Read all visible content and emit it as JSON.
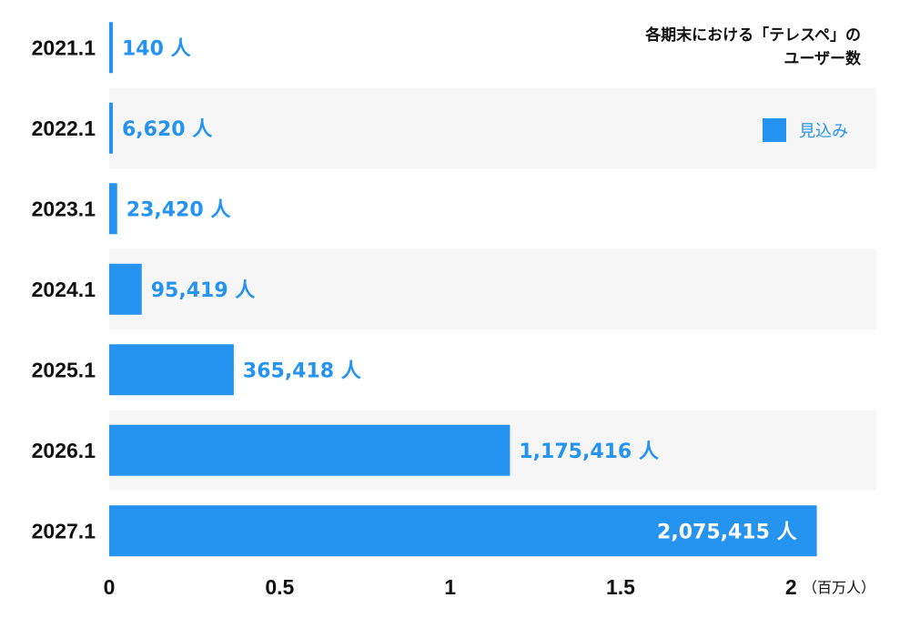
{
  "chart_data": {
    "type": "bar",
    "orientation": "horizontal",
    "title_lines": [
      "各期末における「テレスペ」の",
      "ユーザー数"
    ],
    "categories": [
      "2021.1",
      "2022.1",
      "2023.1",
      "2024.1",
      "2025.1",
      "2026.1",
      "2027.1"
    ],
    "series": [
      {
        "name": "見込み",
        "values": [
          140,
          6620,
          23420,
          95419,
          365418,
          1175416,
          2075415
        ],
        "labels": [
          "140 人",
          "6,620 人",
          "23,420 人",
          "95,419 人",
          "365,418 人",
          "1,175,416 人",
          "2,075,415 人"
        ]
      }
    ],
    "x_ticks": [
      "0",
      "0.5",
      "1",
      "1.5",
      "2"
    ],
    "x_unit": "（百万人）",
    "xlim": [
      0,
      2.25
    ],
    "value_scale": 1000000,
    "legend_position": "top-right",
    "grid": false,
    "colors": {
      "bar": "#2593f0",
      "label": "#2593f0",
      "inside_label": "#ffffff",
      "band": "#f6f6f6"
    }
  }
}
